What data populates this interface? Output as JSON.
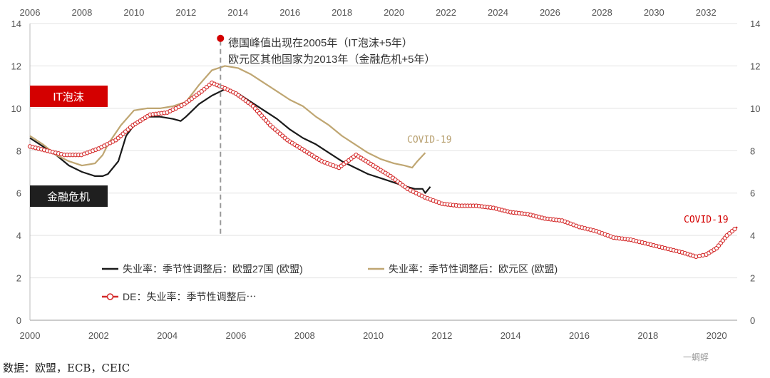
{
  "chart_data": {
    "type": "line",
    "x_bottom_range": [
      2000,
      2020.6
    ],
    "x_bottom_ticks": [
      "2000",
      "2002",
      "2004",
      "2006",
      "2008",
      "2010",
      "2012",
      "2014",
      "2016",
      "2018",
      "2020"
    ],
    "x_top_range": [
      2006,
      2033.2
    ],
    "x_top_ticks": [
      "2006",
      "2008",
      "2010",
      "2012",
      "2014",
      "2016",
      "2018",
      "2020",
      "2022",
      "2024",
      "2026",
      "2028",
      "2030",
      "2032"
    ],
    "y_left_range": [
      0,
      14
    ],
    "y_left_ticks": [
      "0",
      "2",
      "4",
      "6",
      "8",
      "10",
      "12",
      "14"
    ],
    "y_right_range": [
      0,
      14
    ],
    "y_right_ticks": [
      "0",
      "2",
      "4",
      "6",
      "8",
      "10",
      "12",
      "14"
    ],
    "grid": "horizontal",
    "series": [
      {
        "name": "失业率：季节性调整后：欧盟27国 (欧盟)",
        "axis": "top",
        "color": "#1a1a1a",
        "points": [
          [
            2006.0,
            8.6
          ],
          [
            2006.5,
            8.2
          ],
          [
            2007.0,
            7.8
          ],
          [
            2007.5,
            7.3
          ],
          [
            2008.0,
            7.0
          ],
          [
            2008.5,
            6.8
          ],
          [
            2008.8,
            6.8
          ],
          [
            2009.0,
            6.9
          ],
          [
            2009.4,
            7.5
          ],
          [
            2009.7,
            8.7
          ],
          [
            2010.0,
            9.2
          ],
          [
            2010.5,
            9.6
          ],
          [
            2011.0,
            9.6
          ],
          [
            2011.5,
            9.5
          ],
          [
            2011.8,
            9.4
          ],
          [
            2012.0,
            9.6
          ],
          [
            2012.5,
            10.2
          ],
          [
            2013.0,
            10.6
          ],
          [
            2013.5,
            10.9
          ],
          [
            2014.0,
            10.7
          ],
          [
            2014.5,
            10.3
          ],
          [
            2015.0,
            9.9
          ],
          [
            2015.5,
            9.5
          ],
          [
            2016.0,
            9.0
          ],
          [
            2016.5,
            8.6
          ],
          [
            2017.0,
            8.3
          ],
          [
            2017.5,
            7.9
          ],
          [
            2018.0,
            7.5
          ],
          [
            2018.5,
            7.2
          ],
          [
            2019.0,
            6.9
          ],
          [
            2019.5,
            6.7
          ],
          [
            2020.0,
            6.5
          ],
          [
            2020.5,
            6.3
          ],
          [
            2020.8,
            6.2
          ],
          [
            2021.1,
            6.2
          ],
          [
            2021.2,
            6.0
          ],
          [
            2021.4,
            6.3
          ]
        ]
      },
      {
        "name": "失业率：季节性调整后：欧元区 (欧盟)",
        "axis": "top",
        "color": "#bfa672",
        "points": [
          [
            2006.0,
            8.7
          ],
          [
            2006.5,
            8.3
          ],
          [
            2007.0,
            7.8
          ],
          [
            2007.5,
            7.5
          ],
          [
            2008.0,
            7.3
          ],
          [
            2008.5,
            7.4
          ],
          [
            2008.8,
            7.8
          ],
          [
            2009.0,
            8.3
          ],
          [
            2009.5,
            9.2
          ],
          [
            2010.0,
            9.9
          ],
          [
            2010.5,
            10.0
          ],
          [
            2011.0,
            10.0
          ],
          [
            2011.5,
            10.1
          ],
          [
            2012.0,
            10.3
          ],
          [
            2012.5,
            11.1
          ],
          [
            2013.0,
            11.8
          ],
          [
            2013.5,
            12.0
          ],
          [
            2014.0,
            11.9
          ],
          [
            2014.5,
            11.6
          ],
          [
            2015.0,
            11.2
          ],
          [
            2015.5,
            10.8
          ],
          [
            2016.0,
            10.4
          ],
          [
            2016.5,
            10.1
          ],
          [
            2017.0,
            9.6
          ],
          [
            2017.5,
            9.2
          ],
          [
            2018.0,
            8.7
          ],
          [
            2018.5,
            8.3
          ],
          [
            2019.0,
            7.9
          ],
          [
            2019.5,
            7.6
          ],
          [
            2020.0,
            7.4
          ],
          [
            2020.4,
            7.3
          ],
          [
            2020.7,
            7.2
          ],
          [
            2020.9,
            7.5
          ],
          [
            2021.2,
            7.9
          ]
        ]
      },
      {
        "name": "DE：失业率：季节性调整后⋯",
        "axis": "bottom",
        "color": "#d42a2a",
        "points": [
          [
            2000.0,
            8.2
          ],
          [
            2000.5,
            8.0
          ],
          [
            2001.0,
            7.8
          ],
          [
            2001.5,
            7.8
          ],
          [
            2002.0,
            8.1
          ],
          [
            2002.5,
            8.5
          ],
          [
            2003.0,
            9.2
          ],
          [
            2003.5,
            9.7
          ],
          [
            2004.0,
            9.8
          ],
          [
            2004.5,
            10.2
          ],
          [
            2005.0,
            10.8
          ],
          [
            2005.3,
            11.2
          ],
          [
            2005.6,
            11.0
          ],
          [
            2006.0,
            10.7
          ],
          [
            2006.5,
            10.1
          ],
          [
            2007.0,
            9.2
          ],
          [
            2007.5,
            8.5
          ],
          [
            2008.0,
            8.0
          ],
          [
            2008.5,
            7.5
          ],
          [
            2009.0,
            7.2
          ],
          [
            2009.5,
            7.8
          ],
          [
            2010.0,
            7.3
          ],
          [
            2010.5,
            6.8
          ],
          [
            2011.0,
            6.2
          ],
          [
            2011.5,
            5.8
          ],
          [
            2012.0,
            5.5
          ],
          [
            2012.5,
            5.4
          ],
          [
            2013.0,
            5.4
          ],
          [
            2013.5,
            5.3
          ],
          [
            2014.0,
            5.1
          ],
          [
            2014.5,
            5.0
          ],
          [
            2015.0,
            4.8
          ],
          [
            2015.5,
            4.7
          ],
          [
            2016.0,
            4.4
          ],
          [
            2016.5,
            4.2
          ],
          [
            2017.0,
            3.9
          ],
          [
            2017.5,
            3.8
          ],
          [
            2018.0,
            3.6
          ],
          [
            2018.5,
            3.4
          ],
          [
            2019.0,
            3.2
          ],
          [
            2019.4,
            3.0
          ],
          [
            2019.7,
            3.1
          ],
          [
            2020.0,
            3.4
          ],
          [
            2020.3,
            4.0
          ],
          [
            2020.6,
            4.4
          ]
        ]
      }
    ],
    "annotations": {
      "peak_line_2": "德国峰值出现在2005年（IT泡沫+5年）",
      "peak_line_1": "欧元区其他国家为2013年（金融危机+5年）",
      "it_bubble_tag": "IT泡沫",
      "crisis_tag": "金融危机",
      "covid_eurozone": "COVID-19",
      "covid_germany": "COVID-19"
    },
    "legend_placement": "bottom-left inside plot"
  },
  "source": "数据：欧盟，ECB，CEIC",
  "watermark": "一蜩蜉"
}
